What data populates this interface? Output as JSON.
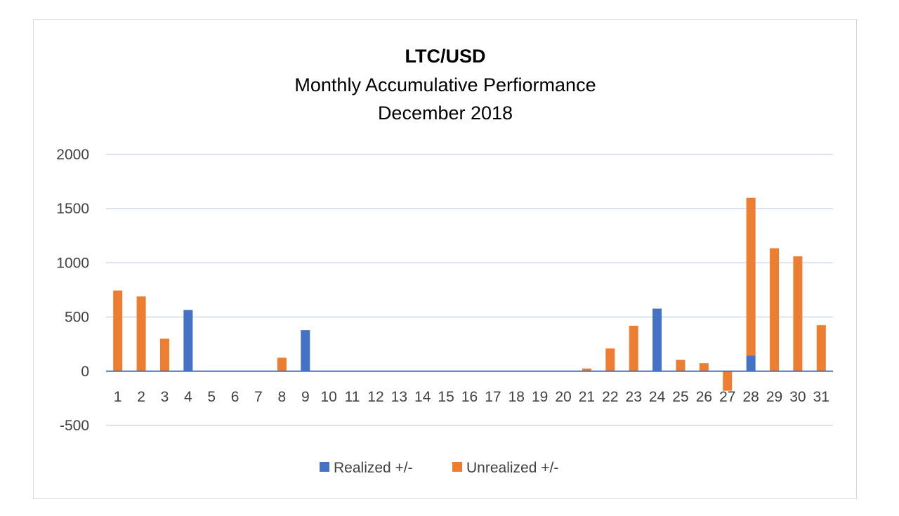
{
  "chart_data": {
    "type": "bar",
    "stacked": true,
    "title": "LTC/USD",
    "subtitle": [
      "Monthly Accumulative Perfiormance",
      "December 2018"
    ],
    "categories": [
      "1",
      "2",
      "3",
      "4",
      "5",
      "6",
      "7",
      "8",
      "9",
      "10",
      "11",
      "12",
      "13",
      "14",
      "15",
      "16",
      "17",
      "18",
      "19",
      "20",
      "21",
      "22",
      "23",
      "24",
      "25",
      "26",
      "27",
      "28",
      "29",
      "30",
      "31"
    ],
    "series": [
      {
        "name": "Realized +/-",
        "color": "#4472c4",
        "values": [
          0,
          0,
          0,
          565,
          0,
          0,
          0,
          0,
          380,
          0,
          0,
          0,
          0,
          0,
          0,
          0,
          0,
          0,
          0,
          0,
          0,
          0,
          0,
          578,
          0,
          0,
          0,
          145,
          0,
          0,
          0
        ]
      },
      {
        "name": "Unrealized +/-",
        "color": "#ed7d31",
        "values": [
          745,
          690,
          300,
          0,
          0,
          0,
          0,
          125,
          0,
          0,
          0,
          0,
          0,
          0,
          0,
          0,
          0,
          0,
          0,
          0,
          25,
          210,
          420,
          0,
          105,
          75,
          -180,
          1455,
          1135,
          1060,
          425
        ]
      }
    ],
    "yticks": [
      "2000",
      "1500",
      "1000",
      "500",
      "0",
      "-500"
    ],
    "ylim": [
      -500,
      2000
    ],
    "grid": true,
    "legend_position": "bottom",
    "gridline_color": "#b4c7e7",
    "zero_line_color": "#4472c4"
  }
}
